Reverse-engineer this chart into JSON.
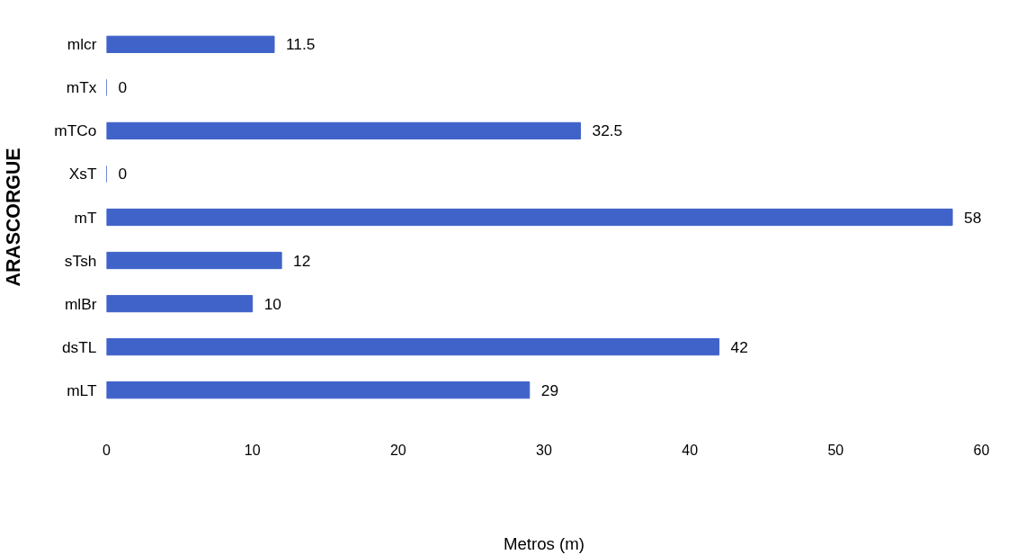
{
  "chart_data": {
    "type": "bar",
    "orientation": "horizontal",
    "categories": [
      "mlcr",
      "mTx",
      "mTCo",
      "XsT",
      "mT",
      "sTsh",
      "mlBr",
      "dsTL",
      "mLT"
    ],
    "values": [
      11.5,
      0,
      32.5,
      0,
      58,
      12,
      10,
      42,
      29
    ],
    "color": "#3f63c8",
    "xlim": [
      0,
      60
    ],
    "xticks": [
      0,
      10,
      20,
      30,
      40,
      50,
      60
    ],
    "xlabel": "Metros (m)",
    "ylabel": "ARASCORGUE",
    "data_labels": true,
    "grid": false
  }
}
